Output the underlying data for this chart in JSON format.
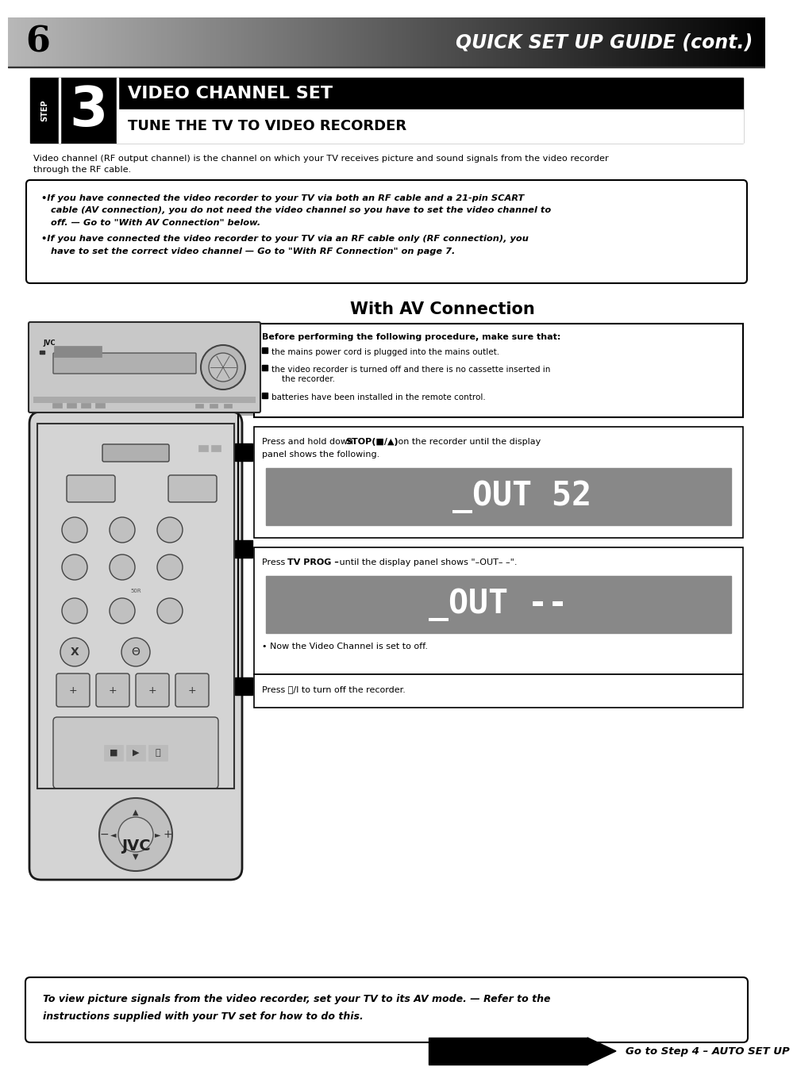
{
  "page_number": "6",
  "header_title": "QUICK SET UP GUIDE (cont.)",
  "step_number": "3",
  "step_label": "STEP",
  "step_title_top": "VIDEO CHANNEL SET",
  "step_title_bottom": "TUNE THE TV TO VIDEO RECORDER",
  "intro_text": "Video channel (RF output channel) is the channel on which your TV receives picture and sound signals from the video recorder\nthrough the RF cable.",
  "bullet1_l1": "•If you have connected the video recorder to your TV via both an RF cable and a 21-pin SCART",
  "bullet1_l2": "   cable (AV connection), you do not need the video channel so you have to set the video channel to",
  "bullet1_l3": "   off. — Go to \"With AV Connection\" below.",
  "bullet2_l1": "•If you have connected the video recorder to your TV via an RF cable only (RF connection), you",
  "bullet2_l2": "   have to set the correct video channel — Go to \"With RF Connection\" on page 7.",
  "av_connection_title": "With AV Connection",
  "before_title": "Before performing the following procedure, make sure that:",
  "before_b1": "the mains power cord is plugged into the mains outlet.",
  "before_b2": "the video recorder is turned off and there is no cassette inserted in\n    the recorder.",
  "before_b3": "batteries have been installed in the remote control.",
  "step_a_text1": "Press and hold down ",
  "step_a_bold": "STOP(■/▲)",
  "step_a_text2": " on the recorder until the display",
  "step_a_text3": "panel shows the following.",
  "step_a_display": "_OUT 52",
  "step_b_text1": "Press ",
  "step_b_bold": "TV PROG –",
  "step_b_text2": " until the display panel shows \"–OUT– –\".",
  "step_b_display": "_OUT --",
  "step_b_note": "• Now the Video Channel is set to off.",
  "step_c_text1": "Press ⏻/I to turn off the recorder.",
  "footer_text1": "To view picture signals from the video recorder, set your TV to its AV mode. — Refer to the",
  "footer_text2": "instructions supplied with your TV set for how to do this.",
  "goto_text": "Go to Step 4 – AUTO SET UP",
  "bg_color": "#ffffff",
  "lcd_bg": "#888888",
  "lcd_fg": "#ffffff"
}
